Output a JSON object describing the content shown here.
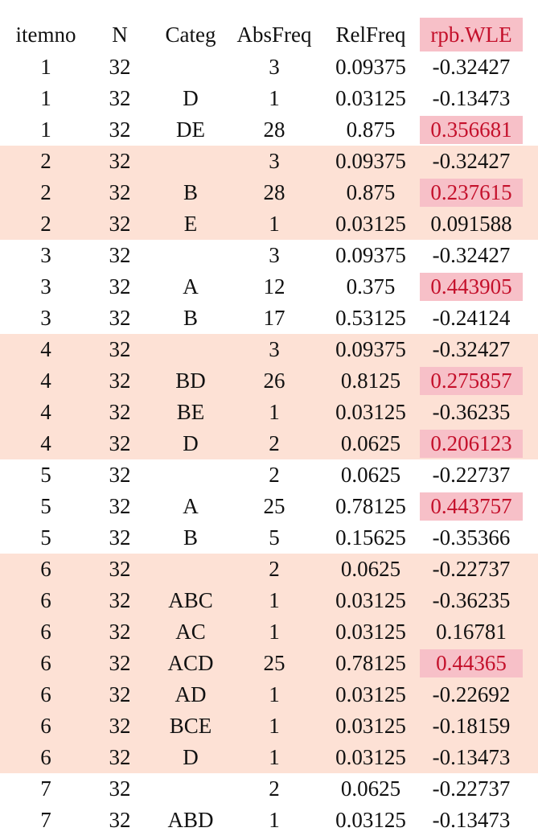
{
  "headers": [
    "itemno",
    "N",
    "Categ",
    "AbsFreq",
    "RelFreq",
    "rpb.WLE"
  ],
  "colors": {
    "band": "#fde1d5",
    "highlight_bg": "#f7c0c8",
    "highlight_text": "#c4102b"
  },
  "rows": [
    {
      "itemno": "1",
      "N": "32",
      "categ": "",
      "absfreq": "3",
      "relfreq": "0.09375",
      "rpb": "-0.32427",
      "band": false,
      "highlight": false
    },
    {
      "itemno": "1",
      "N": "32",
      "categ": "D",
      "absfreq": "1",
      "relfreq": "0.03125",
      "rpb": "-0.13473",
      "band": false,
      "highlight": false
    },
    {
      "itemno": "1",
      "N": "32",
      "categ": "DE",
      "absfreq": "28",
      "relfreq": "0.875",
      "rpb": "0.356681",
      "band": false,
      "highlight": true
    },
    {
      "itemno": "2",
      "N": "32",
      "categ": "",
      "absfreq": "3",
      "relfreq": "0.09375",
      "rpb": "-0.32427",
      "band": true,
      "highlight": false
    },
    {
      "itemno": "2",
      "N": "32",
      "categ": "B",
      "absfreq": "28",
      "relfreq": "0.875",
      "rpb": "0.237615",
      "band": true,
      "highlight": true
    },
    {
      "itemno": "2",
      "N": "32",
      "categ": "E",
      "absfreq": "1",
      "relfreq": "0.03125",
      "rpb": "0.091588",
      "band": true,
      "highlight": false
    },
    {
      "itemno": "3",
      "N": "32",
      "categ": "",
      "absfreq": "3",
      "relfreq": "0.09375",
      "rpb": "-0.32427",
      "band": false,
      "highlight": false
    },
    {
      "itemno": "3",
      "N": "32",
      "categ": "A",
      "absfreq": "12",
      "relfreq": "0.375",
      "rpb": "0.443905",
      "band": false,
      "highlight": true
    },
    {
      "itemno": "3",
      "N": "32",
      "categ": "B",
      "absfreq": "17",
      "relfreq": "0.53125",
      "rpb": "-0.24124",
      "band": false,
      "highlight": false
    },
    {
      "itemno": "4",
      "N": "32",
      "categ": "",
      "absfreq": "3",
      "relfreq": "0.09375",
      "rpb": "-0.32427",
      "band": true,
      "highlight": false
    },
    {
      "itemno": "4",
      "N": "32",
      "categ": "BD",
      "absfreq": "26",
      "relfreq": "0.8125",
      "rpb": "0.275857",
      "band": true,
      "highlight": true
    },
    {
      "itemno": "4",
      "N": "32",
      "categ": "BE",
      "absfreq": "1",
      "relfreq": "0.03125",
      "rpb": "-0.36235",
      "band": true,
      "highlight": false
    },
    {
      "itemno": "4",
      "N": "32",
      "categ": "D",
      "absfreq": "2",
      "relfreq": "0.0625",
      "rpb": "0.206123",
      "band": true,
      "highlight": true
    },
    {
      "itemno": "5",
      "N": "32",
      "categ": "",
      "absfreq": "2",
      "relfreq": "0.0625",
      "rpb": "-0.22737",
      "band": false,
      "highlight": false
    },
    {
      "itemno": "5",
      "N": "32",
      "categ": "A",
      "absfreq": "25",
      "relfreq": "0.78125",
      "rpb": "0.443757",
      "band": false,
      "highlight": true
    },
    {
      "itemno": "5",
      "N": "32",
      "categ": "B",
      "absfreq": "5",
      "relfreq": "0.15625",
      "rpb": "-0.35366",
      "band": false,
      "highlight": false
    },
    {
      "itemno": "6",
      "N": "32",
      "categ": "",
      "absfreq": "2",
      "relfreq": "0.0625",
      "rpb": "-0.22737",
      "band": true,
      "highlight": false
    },
    {
      "itemno": "6",
      "N": "32",
      "categ": "ABC",
      "absfreq": "1",
      "relfreq": "0.03125",
      "rpb": "-0.36235",
      "band": true,
      "highlight": false
    },
    {
      "itemno": "6",
      "N": "32",
      "categ": "AC",
      "absfreq": "1",
      "relfreq": "0.03125",
      "rpb": "0.16781",
      "band": true,
      "highlight": false
    },
    {
      "itemno": "6",
      "N": "32",
      "categ": "ACD",
      "absfreq": "25",
      "relfreq": "0.78125",
      "rpb": "0.44365",
      "band": true,
      "highlight": true
    },
    {
      "itemno": "6",
      "N": "32",
      "categ": "AD",
      "absfreq": "1",
      "relfreq": "0.03125",
      "rpb": "-0.22692",
      "band": true,
      "highlight": false
    },
    {
      "itemno": "6",
      "N": "32",
      "categ": "BCE",
      "absfreq": "1",
      "relfreq": "0.03125",
      "rpb": "-0.18159",
      "band": true,
      "highlight": false
    },
    {
      "itemno": "6",
      "N": "32",
      "categ": "D",
      "absfreq": "1",
      "relfreq": "0.03125",
      "rpb": "-0.13473",
      "band": true,
      "highlight": false
    },
    {
      "itemno": "7",
      "N": "32",
      "categ": "",
      "absfreq": "2",
      "relfreq": "0.0625",
      "rpb": "-0.22737",
      "band": false,
      "highlight": false
    },
    {
      "itemno": "7",
      "N": "32",
      "categ": "ABD",
      "absfreq": "1",
      "relfreq": "0.03125",
      "rpb": "-0.13473",
      "band": false,
      "highlight": false
    }
  ]
}
